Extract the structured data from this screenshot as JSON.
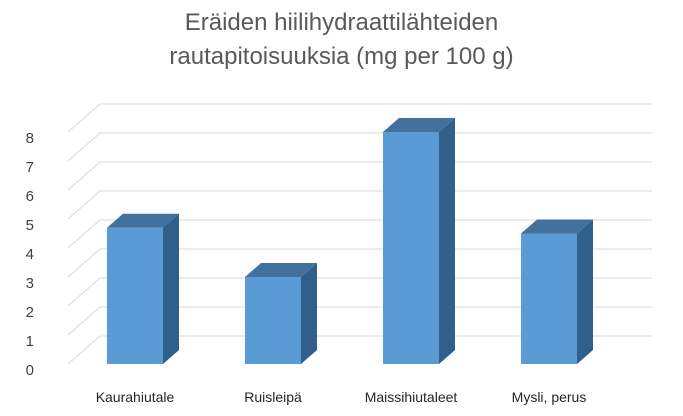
{
  "chart_data": {
    "type": "bar",
    "title_lines": [
      "Eräiden hiilihydraattilähteiden",
      "rautapitoisuuksia (mg per 100 g)"
    ],
    "xlabel": "",
    "ylabel": "",
    "categories": [
      "Kaurahiutale",
      "Ruisleipä",
      "Maissihiutaleet",
      "Mysli, perus"
    ],
    "values": [
      4.7,
      3.0,
      8.0,
      4.5
    ],
    "ylim": [
      0,
      8
    ],
    "yticks": [
      "0",
      "1",
      "2",
      "3",
      "4",
      "5",
      "6",
      "7",
      "8"
    ],
    "grid": true,
    "legend": "none",
    "three_d": true,
    "colors": {
      "bar_front": "#5B9BD5",
      "bar_top": "#41719C",
      "bar_side": "#2F5F8A",
      "gridline": "#D9D9D9",
      "title": "#595959"
    }
  }
}
